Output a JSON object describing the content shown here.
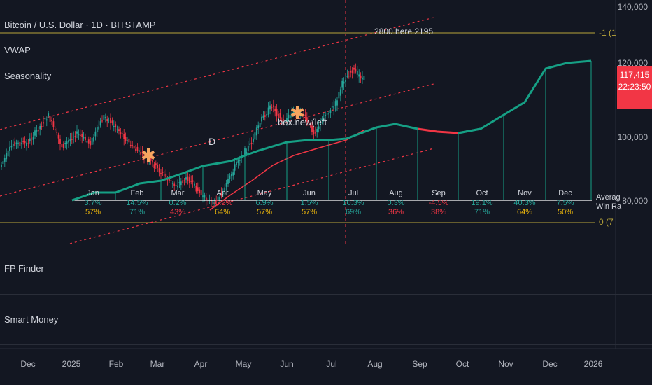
{
  "header": {
    "symbol_title": "Bitcoin / U.S. Dollar · 1D · BITSTAMP",
    "indicators": [
      "VWAP",
      "Seasonality"
    ]
  },
  "panes": [
    "FP Finder",
    "Smart Money"
  ],
  "price_axis": {
    "ticks": [
      "140,000",
      "120,000",
      "100,000",
      "80,000"
    ],
    "current_price": "117,415",
    "countdown": "22:23:50",
    "right_level_top": "-1 (1",
    "right_level_bottom": "0 (7"
  },
  "time_axis": [
    "Dec",
    "2025",
    "Feb",
    "Mar",
    "Apr",
    "May",
    "Jun",
    "Jul",
    "Aug",
    "Sep",
    "Oct",
    "Nov",
    "Dec",
    "2026"
  ],
  "annotations": {
    "top_note": "2800 here   2195",
    "box_note": "box.new(left",
    "marker_d": "D",
    "legend_avg": "Averag",
    "legend_win": "Win Ra"
  },
  "seasonality": {
    "months": [
      "Jan",
      "Feb",
      "Mar",
      "Apr",
      "May",
      "Jun",
      "Jul",
      "Aug",
      "Sep",
      "Oct",
      "Nov",
      "Dec"
    ],
    "avg_returns": [
      "3.7%",
      "14.5%",
      "0.2%",
      "-6.3%",
      "6.9%",
      "1.5%",
      "10.3%",
      "0.3%",
      "-4.5%",
      "19.1%",
      "40.3%",
      "7.5%"
    ],
    "win_rates": [
      "57%",
      "71%",
      "43%",
      "64%",
      "57%",
      "57%",
      "69%",
      "36%",
      "38%",
      "71%",
      "64%",
      "50%"
    ],
    "win_colors": [
      "#f0b90b",
      "#26a69a",
      "#f23645",
      "#f0b90b",
      "#f0b90b",
      "#f0b90b",
      "#26a69a",
      "#f23645",
      "#f23645",
      "#26a69a",
      "#f0b90b",
      "#f0b90b"
    ]
  },
  "colors": {
    "up": "#26a69a",
    "down": "#f23645",
    "background": "#131722",
    "level_line": "#b8a43a",
    "projection": "#16a085"
  }
}
